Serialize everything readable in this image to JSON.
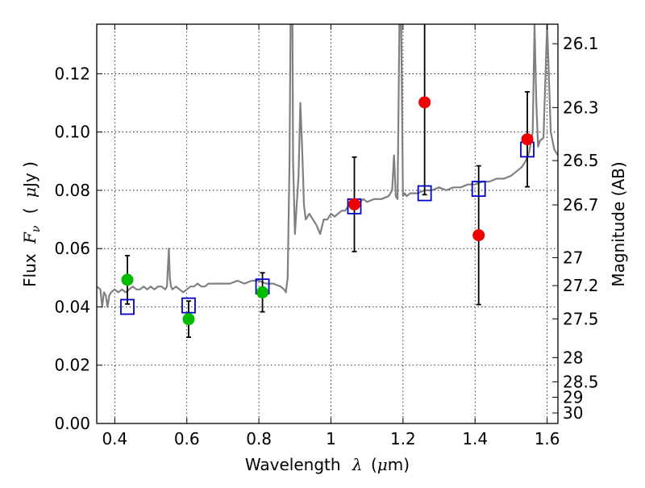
{
  "chart_data": {
    "type": "scatter",
    "title": "",
    "xlabel_parts": {
      "prefix": "Wavelength",
      "symbol": "λ",
      "unit_open": "(",
      "unit_mu": "μ",
      "unit_rest": "m)"
    },
    "ylabel_parts": {
      "prefix": "Flux",
      "symbol": "F",
      "subscript": "ν",
      "unit_open": "(",
      "unit_mu": "μ",
      "unit_rest": "Jy )"
    },
    "y2label": "Magnitude (AB)",
    "xlim": [
      0.35,
      1.63
    ],
    "ylim": [
      0.0,
      0.137
    ],
    "xticks": [
      0.4,
      0.6,
      0.8,
      1.0,
      1.2,
      1.4,
      1.6
    ],
    "xtick_labels": [
      "0.4",
      "0.6",
      "0.8",
      "1",
      "1.2",
      "1.4",
      "1.6"
    ],
    "yticks": [
      0.0,
      0.02,
      0.04,
      0.06,
      0.08,
      0.1,
      0.12
    ],
    "ytick_labels": [
      "0.00",
      "0.02",
      "0.04",
      "0.06",
      "0.08",
      "0.10",
      "0.12"
    ],
    "mag_ticks": [
      {
        "label": "26.1",
        "flux": 0.1303
      },
      {
        "label": "26.3",
        "flux": 0.1084
      },
      {
        "label": "26.5",
        "flux": 0.0902
      },
      {
        "label": "26.7",
        "flux": 0.075
      },
      {
        "label": "27",
        "flux": 0.0569
      },
      {
        "label": "27.2",
        "flux": 0.0473
      },
      {
        "label": "27.5",
        "flux": 0.0359
      },
      {
        "label": "28",
        "flux": 0.0226
      },
      {
        "label": "28.5",
        "flux": 0.0143
      },
      {
        "label": "29",
        "flux": 0.009
      },
      {
        "label": "30",
        "flux": 0.0036
      }
    ],
    "grid": true,
    "series": [
      {
        "name": "template_spectrum",
        "kind": "line",
        "color": "#808080",
        "x": [
          0.35,
          0.36,
          0.365,
          0.37,
          0.375,
          0.38,
          0.385,
          0.39,
          0.4,
          0.41,
          0.42,
          0.43,
          0.44,
          0.45,
          0.46,
          0.47,
          0.48,
          0.49,
          0.5,
          0.51,
          0.52,
          0.53,
          0.54,
          0.545,
          0.55,
          0.553,
          0.556,
          0.56,
          0.57,
          0.58,
          0.59,
          0.6,
          0.61,
          0.62,
          0.63,
          0.64,
          0.65,
          0.66,
          0.68,
          0.7,
          0.72,
          0.74,
          0.76,
          0.78,
          0.8,
          0.82,
          0.84,
          0.86,
          0.87,
          0.875,
          0.88,
          0.885,
          0.888,
          0.89,
          0.893,
          0.895,
          0.9,
          0.905,
          0.91,
          0.915,
          0.92,
          0.925,
          0.93,
          0.94,
          0.95,
          0.96,
          0.97,
          0.98,
          0.99,
          1.0,
          1.01,
          1.02,
          1.03,
          1.04,
          1.05,
          1.06,
          1.07,
          1.08,
          1.09,
          1.1,
          1.12,
          1.14,
          1.16,
          1.17,
          1.175,
          1.18,
          1.185,
          1.19,
          1.195,
          1.2,
          1.205,
          1.21,
          1.22,
          1.24,
          1.26,
          1.28,
          1.3,
          1.32,
          1.34,
          1.36,
          1.38,
          1.4,
          1.42,
          1.44,
          1.46,
          1.48,
          1.5,
          1.51,
          1.52,
          1.53,
          1.54,
          1.55,
          1.56,
          1.565,
          1.57,
          1.575,
          1.58,
          1.59,
          1.6,
          1.61,
          1.62,
          1.63
        ],
        "y": [
          0.047,
          0.046,
          0.04,
          0.045,
          0.044,
          0.04,
          0.044,
          0.045,
          0.046,
          0.045,
          0.046,
          0.045,
          0.046,
          0.047,
          0.046,
          0.046,
          0.047,
          0.046,
          0.047,
          0.046,
          0.047,
          0.047,
          0.046,
          0.047,
          0.06,
          0.05,
          0.047,
          0.046,
          0.047,
          0.046,
          0.045,
          0.046,
          0.047,
          0.047,
          0.048,
          0.047,
          0.047,
          0.048,
          0.048,
          0.048,
          0.048,
          0.049,
          0.048,
          0.049,
          0.049,
          0.048,
          0.048,
          0.047,
          0.046,
          0.045,
          0.05,
          0.09,
          0.137,
          0.137,
          0.137,
          0.09,
          0.065,
          0.075,
          0.085,
          0.11,
          0.095,
          0.075,
          0.07,
          0.072,
          0.07,
          0.068,
          0.065,
          0.07,
          0.07,
          0.072,
          0.071,
          0.072,
          0.073,
          0.073,
          0.075,
          0.074,
          0.076,
          0.076,
          0.077,
          0.076,
          0.077,
          0.077,
          0.078,
          0.08,
          0.092,
          0.078,
          0.077,
          0.137,
          0.137,
          0.078,
          0.079,
          0.078,
          0.079,
          0.079,
          0.08,
          0.08,
          0.081,
          0.08,
          0.081,
          0.081,
          0.082,
          0.082,
          0.083,
          0.083,
          0.084,
          0.084,
          0.085,
          0.086,
          0.087,
          0.088,
          0.09,
          0.093,
          0.1,
          0.137,
          0.11,
          0.095,
          0.097,
          0.098,
          0.137,
          0.1,
          0.094,
          0.092
        ]
      },
      {
        "name": "model_points",
        "kind": "square",
        "color": "#0000cc",
        "x": [
          0.435,
          0.605,
          0.81,
          1.065,
          1.26,
          1.41,
          1.545
        ],
        "y": [
          0.04,
          0.0405,
          0.047,
          0.0745,
          0.079,
          0.0805,
          0.094
        ]
      },
      {
        "name": "observed_green",
        "kind": "circle",
        "color": "#00bb00",
        "x": [
          0.435,
          0.605,
          0.81
        ],
        "y": [
          0.0493,
          0.0358,
          0.045
        ],
        "yerr": [
          0.0083,
          0.0062,
          0.0067
        ]
      },
      {
        "name": "observed_red",
        "kind": "circle",
        "color": "#ee0000",
        "x": [
          1.065,
          1.26,
          1.41,
          1.545
        ],
        "y": [
          0.0752,
          0.1102,
          0.0646,
          0.0975
        ],
        "yerr": [
          0.0162,
          0.0317,
          0.0238,
          0.0163
        ]
      }
    ]
  }
}
